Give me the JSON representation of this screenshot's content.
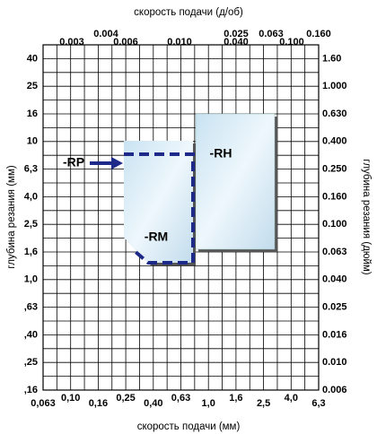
{
  "top_axis_title": "скорость подачи (д/об)",
  "bottom_axis_title": "скорость подачи (мм)",
  "left_axis_title": "глубина резания (мм)",
  "right_axis_title": "глубина резания (дюйм)",
  "top_labels_upper": [
    "0.004",
    "0.025",
    "0.063",
    "0.160"
  ],
  "top_labels_lower": [
    "0.003",
    "0.006",
    "0.010",
    "0.040",
    "0.100"
  ],
  "bottom_labels": [
    "0,063",
    "0,10",
    "0,16",
    "0,25",
    "0,40",
    "0,63",
    "1,0",
    "1,6",
    "2,5",
    "4,0",
    "6,3"
  ],
  "left_labels": [
    "40",
    "25",
    "16",
    "10",
    "6,3",
    "4,0",
    "2,5",
    "1,6",
    "1,0",
    ",63",
    ",40",
    ",25",
    ",16"
  ],
  "right_labels": [
    "1.60",
    "1.000",
    "0.630",
    "0.400",
    "0.250",
    "0.160",
    "0.100",
    "0.063",
    "0.040",
    "0.025",
    "0.016",
    "0.010",
    "0.006"
  ],
  "regions": {
    "rp": "-RP",
    "rm": "-RM",
    "rh": "-RH"
  }
}
